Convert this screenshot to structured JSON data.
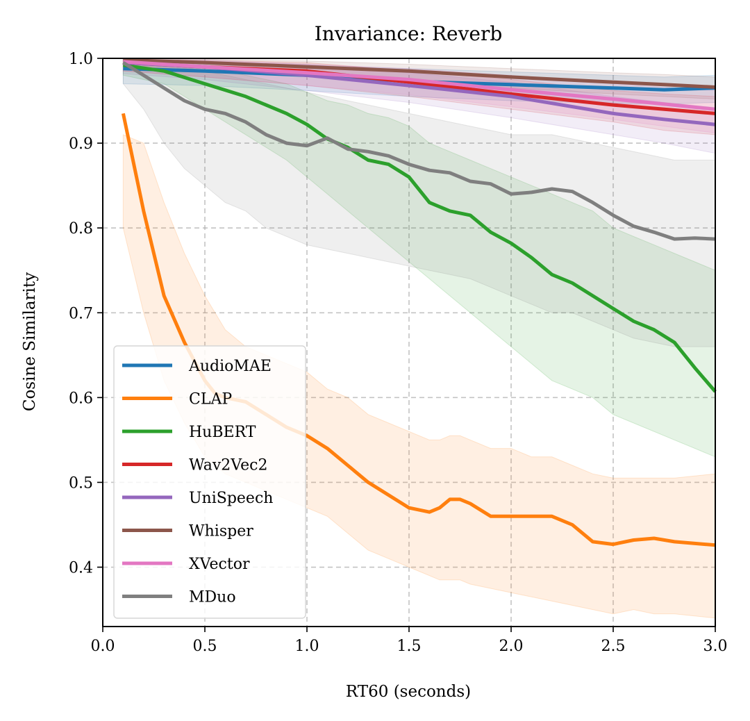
{
  "chart_data": {
    "type": "line",
    "title": "Invariance: Reverb",
    "xlabel": "RT60 (seconds)",
    "ylabel": "Cosine Similarity",
    "xlim": [
      0.0,
      3.0
    ],
    "ylim": [
      0.33,
      1.0
    ],
    "xticks": [
      0.0,
      0.5,
      1.0,
      1.5,
      2.0,
      2.5,
      3.0
    ],
    "xtick_labels": [
      "0.0",
      "0.5",
      "1.0",
      "1.5",
      "2.0",
      "2.5",
      "3.0"
    ],
    "yticks": [
      0.4,
      0.5,
      0.6,
      0.7,
      0.8,
      0.9,
      1.0
    ],
    "ytick_labels": [
      "0.4",
      "0.5",
      "0.6",
      "0.7",
      "0.8",
      "0.9",
      "1.0"
    ],
    "grid": true,
    "legend_position": "lower-left",
    "series": [
      {
        "name": "AudioMAE",
        "color": "#1f77b4",
        "x": [
          0.1,
          0.5,
          1.0,
          1.5,
          2.0,
          2.5,
          2.75,
          3.0
        ],
        "y": [
          0.988,
          0.985,
          0.98,
          0.973,
          0.969,
          0.965,
          0.963,
          0.965
        ],
        "lower": [
          0.97,
          0.968,
          0.962,
          0.955,
          0.95,
          0.947,
          0.946,
          0.948
        ],
        "upper": [
          0.998,
          0.996,
          0.992,
          0.988,
          0.984,
          0.98,
          0.978,
          0.98
        ]
      },
      {
        "name": "CLAP",
        "color": "#ff7f0e",
        "x": [
          0.1,
          0.2,
          0.3,
          0.4,
          0.5,
          0.55,
          0.6,
          0.7,
          0.8,
          0.9,
          1.0,
          1.1,
          1.2,
          1.3,
          1.4,
          1.5,
          1.6,
          1.65,
          1.7,
          1.75,
          1.8,
          1.9,
          2.0,
          2.1,
          2.2,
          2.3,
          2.4,
          2.5,
          2.6,
          2.7,
          2.8,
          3.0
        ],
        "y": [
          0.935,
          0.82,
          0.72,
          0.665,
          0.62,
          0.605,
          0.6,
          0.595,
          0.58,
          0.565,
          0.555,
          0.54,
          0.52,
          0.5,
          0.485,
          0.47,
          0.465,
          0.47,
          0.48,
          0.48,
          0.475,
          0.46,
          0.46,
          0.46,
          0.46,
          0.45,
          0.43,
          0.427,
          0.432,
          0.434,
          0.43,
          0.426
        ],
        "lower": [
          0.8,
          0.7,
          0.62,
          0.57,
          0.53,
          0.52,
          0.51,
          0.5,
          0.49,
          0.48,
          0.47,
          0.46,
          0.44,
          0.42,
          0.41,
          0.4,
          0.39,
          0.385,
          0.385,
          0.385,
          0.38,
          0.375,
          0.37,
          0.365,
          0.36,
          0.355,
          0.35,
          0.345,
          0.35,
          0.345,
          0.345,
          0.34
        ],
        "upper": [
          0.91,
          0.9,
          0.83,
          0.77,
          0.72,
          0.7,
          0.68,
          0.66,
          0.65,
          0.64,
          0.63,
          0.61,
          0.6,
          0.58,
          0.57,
          0.56,
          0.55,
          0.55,
          0.555,
          0.555,
          0.55,
          0.54,
          0.54,
          0.53,
          0.53,
          0.52,
          0.51,
          0.505,
          0.505,
          0.505,
          0.505,
          0.51
        ]
      },
      {
        "name": "HuBERT",
        "color": "#2ca02c",
        "x": [
          0.1,
          0.3,
          0.5,
          0.7,
          0.9,
          1.0,
          1.1,
          1.2,
          1.3,
          1.4,
          1.5,
          1.6,
          1.7,
          1.8,
          1.9,
          2.0,
          2.1,
          2.2,
          2.3,
          2.4,
          2.5,
          2.6,
          2.7,
          2.8,
          2.9,
          3.0
        ],
        "y": [
          0.992,
          0.985,
          0.97,
          0.955,
          0.935,
          0.922,
          0.905,
          0.895,
          0.88,
          0.875,
          0.86,
          0.83,
          0.82,
          0.815,
          0.795,
          0.782,
          0.765,
          0.745,
          0.735,
          0.72,
          0.705,
          0.69,
          0.68,
          0.665,
          0.635,
          0.607
        ],
        "lower": [
          0.98,
          0.97,
          0.94,
          0.91,
          0.88,
          0.86,
          0.84,
          0.82,
          0.8,
          0.78,
          0.76,
          0.74,
          0.72,
          0.7,
          0.68,
          0.66,
          0.64,
          0.62,
          0.61,
          0.6,
          0.58,
          0.57,
          0.56,
          0.55,
          0.54,
          0.53
        ],
        "upper": [
          0.999,
          0.995,
          0.99,
          0.98,
          0.97,
          0.96,
          0.95,
          0.945,
          0.935,
          0.93,
          0.92,
          0.9,
          0.89,
          0.88,
          0.87,
          0.86,
          0.85,
          0.84,
          0.83,
          0.82,
          0.8,
          0.79,
          0.78,
          0.77,
          0.76,
          0.75
        ]
      },
      {
        "name": "Wav2Vec2",
        "color": "#d62728",
        "x": [
          0.1,
          0.5,
          1.0,
          1.5,
          2.0,
          2.5,
          2.75,
          3.0
        ],
        "y": [
          0.995,
          0.99,
          0.985,
          0.972,
          0.958,
          0.945,
          0.94,
          0.935
        ],
        "lower": [
          0.985,
          0.978,
          0.968,
          0.955,
          0.94,
          0.925,
          0.915,
          0.91
        ],
        "upper": [
          0.999,
          0.998,
          0.995,
          0.985,
          0.975,
          0.962,
          0.958,
          0.955
        ]
      },
      {
        "name": "UniSpeech",
        "color": "#9467bd",
        "x": [
          0.1,
          0.5,
          1.0,
          1.5,
          2.0,
          2.5,
          2.75,
          3.0
        ],
        "y": [
          0.995,
          0.99,
          0.98,
          0.968,
          0.955,
          0.935,
          0.928,
          0.922
        ],
        "lower": [
          0.982,
          0.975,
          0.962,
          0.948,
          0.93,
          0.91,
          0.9,
          0.888
        ],
        "upper": [
          0.999,
          0.998,
          0.993,
          0.983,
          0.972,
          0.955,
          0.948,
          0.942
        ]
      },
      {
        "name": "Whisper",
        "color": "#8c564b",
        "x": [
          0.1,
          0.5,
          1.0,
          1.5,
          2.0,
          2.5,
          2.75,
          3.0
        ],
        "y": [
          0.998,
          0.995,
          0.99,
          0.985,
          0.978,
          0.972,
          0.969,
          0.966
        ],
        "lower": [
          0.99,
          0.985,
          0.98,
          0.972,
          0.965,
          0.958,
          0.955,
          0.952
        ],
        "upper": [
          1.0,
          0.999,
          0.997,
          0.993,
          0.988,
          0.983,
          0.981,
          0.978
        ]
      },
      {
        "name": "XVector",
        "color": "#e377c2",
        "x": [
          0.1,
          0.5,
          1.0,
          1.5,
          2.0,
          2.5,
          2.75,
          3.0
        ],
        "y": [
          0.996,
          0.99,
          0.983,
          0.975,
          0.963,
          0.952,
          0.946,
          0.94
        ],
        "lower": [
          0.985,
          0.978,
          0.968,
          0.957,
          0.943,
          0.928,
          0.92,
          0.912
        ],
        "upper": [
          0.999,
          0.997,
          0.993,
          0.988,
          0.98,
          0.97,
          0.966,
          0.962
        ]
      },
      {
        "name": "MDuo",
        "color": "#7f7f7f",
        "x": [
          0.1,
          0.2,
          0.3,
          0.4,
          0.5,
          0.6,
          0.7,
          0.8,
          0.9,
          1.0,
          1.1,
          1.2,
          1.3,
          1.4,
          1.5,
          1.6,
          1.7,
          1.8,
          1.9,
          2.0,
          2.1,
          2.2,
          2.3,
          2.4,
          2.5,
          2.6,
          2.7,
          2.8,
          2.9,
          3.0
        ],
        "y": [
          0.995,
          0.98,
          0.965,
          0.95,
          0.94,
          0.935,
          0.925,
          0.91,
          0.9,
          0.897,
          0.906,
          0.893,
          0.89,
          0.885,
          0.875,
          0.868,
          0.865,
          0.855,
          0.852,
          0.84,
          0.842,
          0.846,
          0.843,
          0.83,
          0.815,
          0.802,
          0.795,
          0.787,
          0.788,
          0.787
        ],
        "lower": [
          0.97,
          0.94,
          0.9,
          0.87,
          0.85,
          0.83,
          0.82,
          0.8,
          0.79,
          0.78,
          0.775,
          0.77,
          0.765,
          0.76,
          0.755,
          0.75,
          0.745,
          0.74,
          0.73,
          0.72,
          0.71,
          0.7,
          0.7,
          0.69,
          0.68,
          0.67,
          0.665,
          0.66,
          0.66,
          0.66
        ],
        "upper": [
          1.0,
          0.998,
          0.995,
          0.99,
          0.985,
          0.98,
          0.975,
          0.97,
          0.965,
          0.96,
          0.955,
          0.95,
          0.945,
          0.94,
          0.935,
          0.93,
          0.925,
          0.92,
          0.915,
          0.91,
          0.91,
          0.91,
          0.905,
          0.9,
          0.895,
          0.89,
          0.885,
          0.88,
          0.88,
          0.88
        ]
      }
    ]
  }
}
